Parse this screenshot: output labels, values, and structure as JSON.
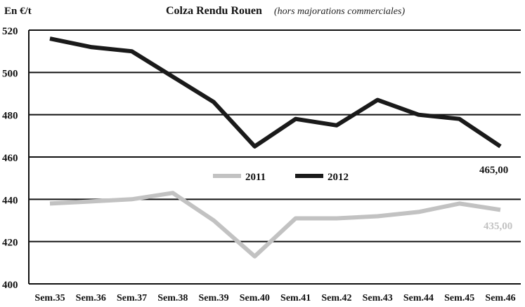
{
  "chart_data": {
    "type": "line",
    "unit_label": "En €/t",
    "title": "Colza Rendu Rouen",
    "subtitle": "(hors majorations commerciales)",
    "categories": [
      "Sem.35",
      "Sem.36",
      "Sem.37",
      "Sem.38",
      "Sem.39",
      "Sem.40",
      "Sem.41",
      "Sem.42",
      "Sem.43",
      "Sem.44",
      "Sem.45",
      "Sem.46"
    ],
    "ylim": [
      400,
      520
    ],
    "yticks": [
      "400",
      "420",
      "440",
      "460",
      "480",
      "500",
      "520"
    ],
    "grid": true,
    "legend_position": "center",
    "series": [
      {
        "name": "2011",
        "color": "#c2c2c2",
        "values": [
          438,
          439,
          440,
          443,
          430,
          413,
          431,
          431,
          432,
          434,
          438,
          435
        ],
        "end_label": "435,00"
      },
      {
        "name": "2012",
        "color": "#1a1a1a",
        "values": [
          516,
          512,
          510,
          498,
          486,
          465,
          478,
          475,
          487,
          480,
          478,
          465
        ],
        "end_label": "465,00"
      }
    ]
  }
}
